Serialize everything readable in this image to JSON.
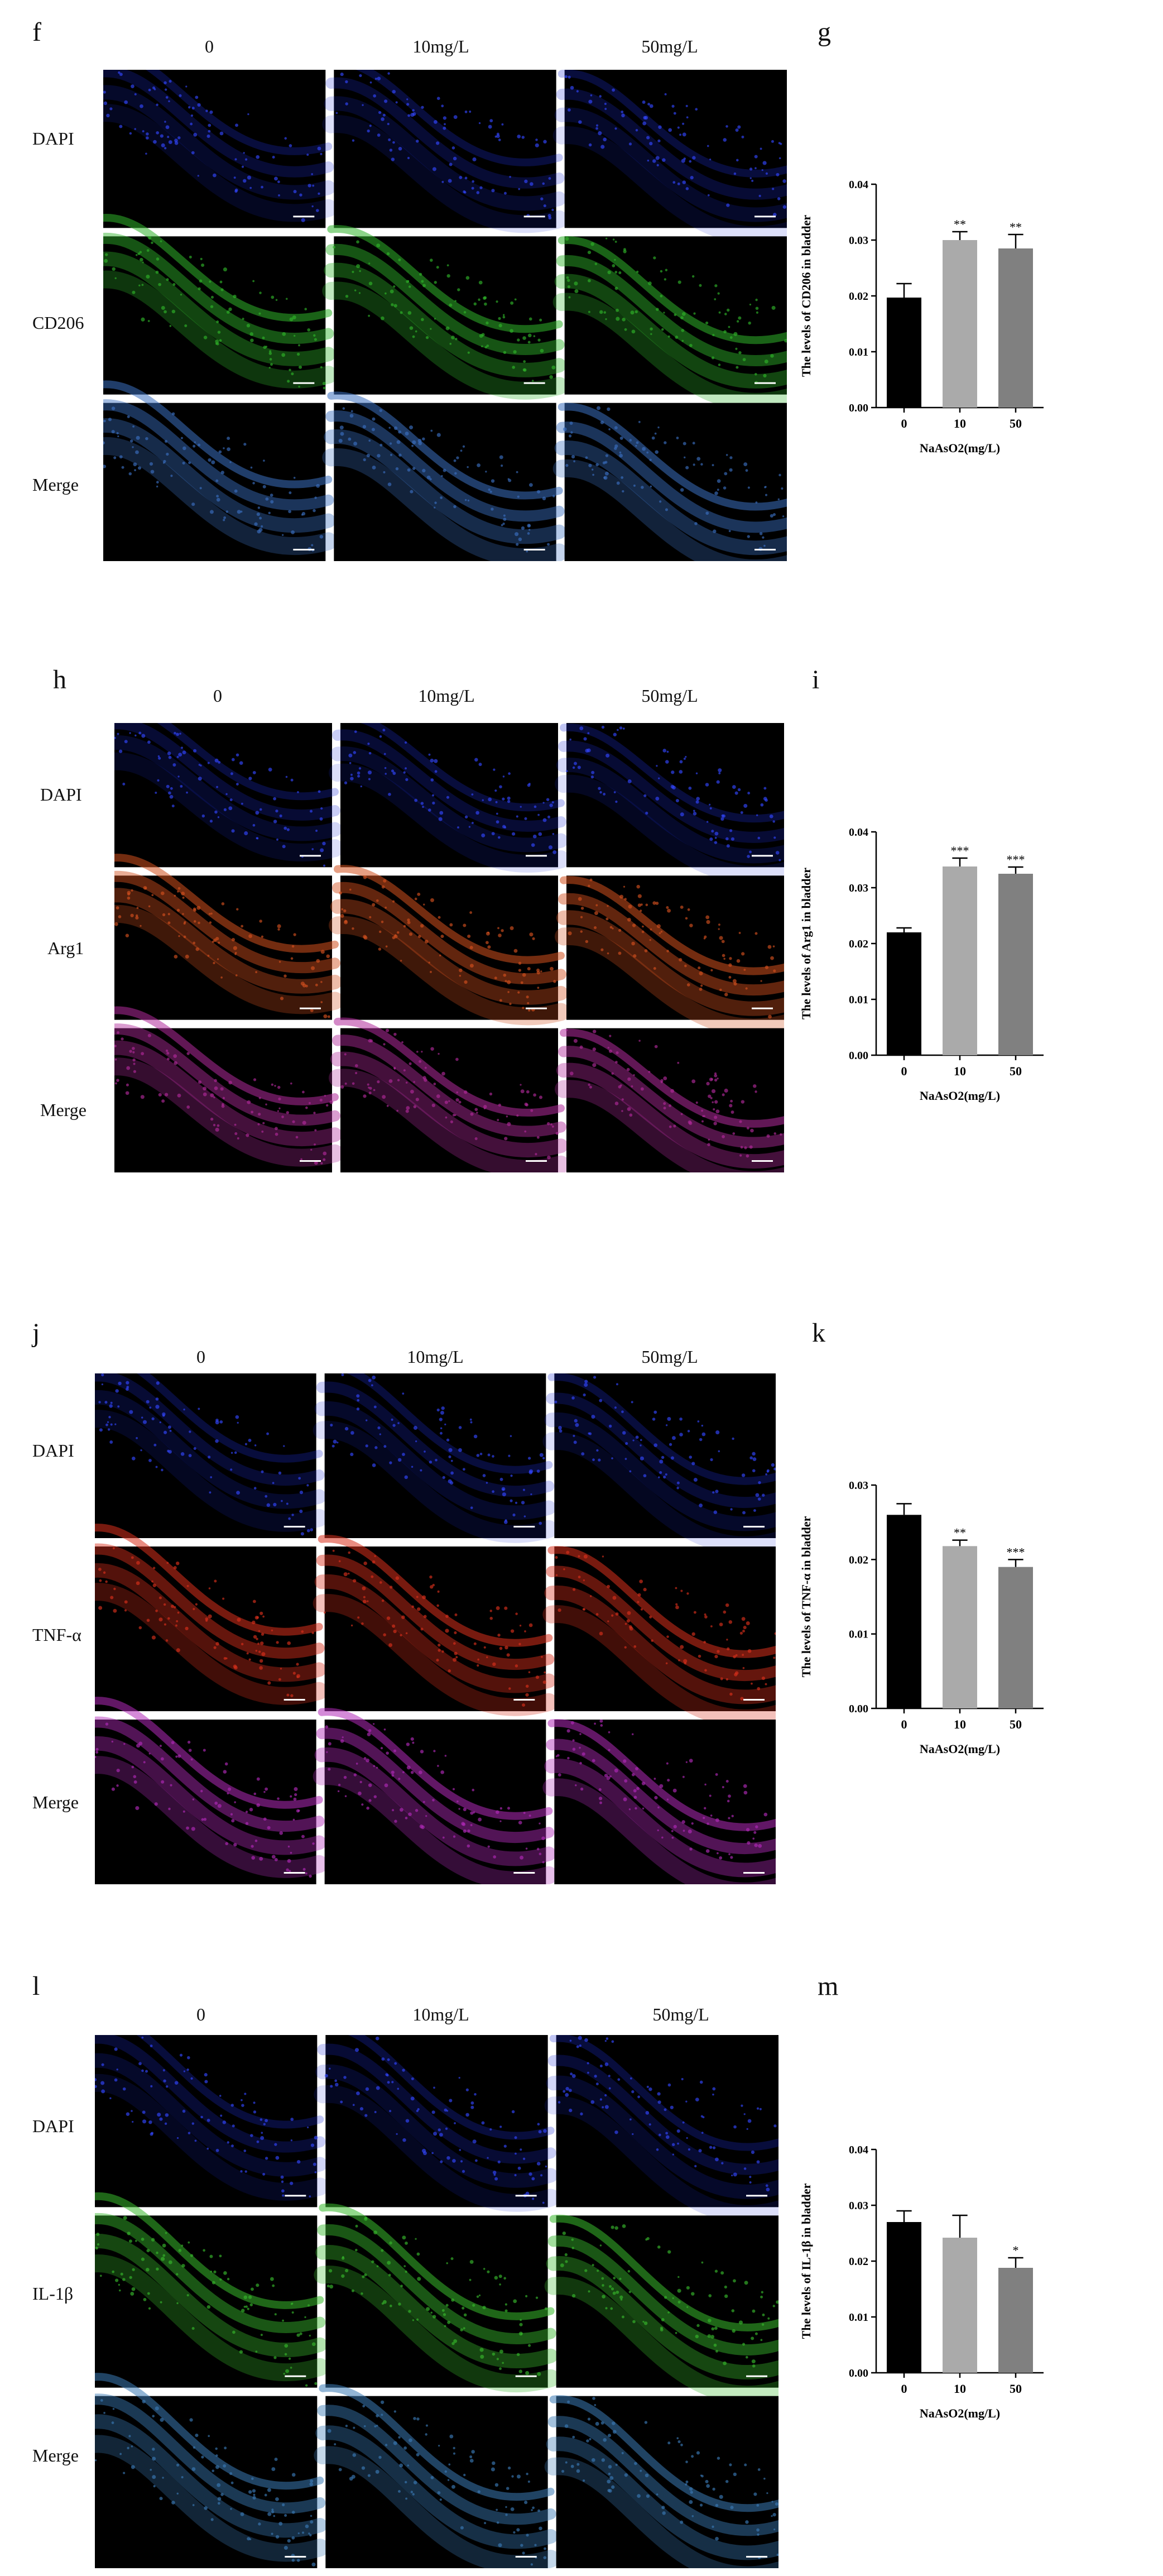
{
  "panels": [
    {
      "image_label": "f",
      "chart_label": "g",
      "columns": [
        "0",
        "10mg/L",
        "50mg/L"
      ],
      "rows": [
        "DAPI",
        "CD206",
        "Merge"
      ],
      "stain_colors": [
        "#1c2fd8",
        "#2fb32a",
        "#3a6fc0"
      ]
    },
    {
      "image_label": "h",
      "chart_label": "i",
      "columns": [
        "0",
        "10mg/L",
        "50mg/L"
      ],
      "rows": [
        "DAPI",
        "Arg1",
        "Merge"
      ],
      "stain_colors": [
        "#1c2fd8",
        "#d2501e",
        "#b02a9a"
      ]
    },
    {
      "image_label": "j",
      "chart_label": "k",
      "columns": [
        "0",
        "10mg/L",
        "50mg/L"
      ],
      "rows": [
        "DAPI",
        "TNF-α",
        "Merge"
      ],
      "stain_colors": [
        "#1c2fd8",
        "#d8301c",
        "#b02ab8"
      ]
    },
    {
      "image_label": "l",
      "chart_label": "m",
      "columns": [
        "0",
        "10mg/L",
        "50mg/L"
      ],
      "rows": [
        "DAPI",
        "IL-1β",
        "Merge"
      ],
      "stain_colors": [
        "#1c2fd8",
        "#38b92c",
        "#3a7ab5"
      ]
    }
  ],
  "chart_data": [
    {
      "type": "bar",
      "ylabel": "The levels of CD206 in bladder",
      "xlabel": "NaAsO2(mg/L)",
      "categories": [
        "0",
        "10",
        "50"
      ],
      "values": [
        0.0197,
        0.03,
        0.0285
      ],
      "errors": [
        0.0025,
        0.0015,
        0.0025
      ],
      "significance": [
        "",
        "**",
        "**"
      ],
      "bar_colors": [
        "#000000",
        "#aaaaaa",
        "#808080"
      ],
      "ylim": [
        0,
        0.04
      ],
      "yticks": [
        "0.00",
        "0.01",
        "0.02",
        "0.03",
        "0.04"
      ]
    },
    {
      "type": "bar",
      "ylabel": "The levels of Arg1 in bladder",
      "xlabel": "NaAsO2(mg/L)",
      "categories": [
        "0",
        "10",
        "50"
      ],
      "values": [
        0.022,
        0.0338,
        0.0325
      ],
      "errors": [
        0.0008,
        0.0015,
        0.0012
      ],
      "significance": [
        "",
        "***",
        "***"
      ],
      "bar_colors": [
        "#000000",
        "#aaaaaa",
        "#808080"
      ],
      "ylim": [
        0,
        0.04
      ],
      "yticks": [
        "0.00",
        "0.01",
        "0.02",
        "0.03",
        "0.04"
      ]
    },
    {
      "type": "bar",
      "ylabel": "The levels of TNF-α in bladder",
      "xlabel": "NaAsO2(mg/L)",
      "categories": [
        "0",
        "10",
        "50"
      ],
      "values": [
        0.026,
        0.0218,
        0.019
      ],
      "errors": [
        0.0015,
        0.0008,
        0.001
      ],
      "significance": [
        "",
        "**",
        "***"
      ],
      "bar_colors": [
        "#000000",
        "#aaaaaa",
        "#808080"
      ],
      "ylim": [
        0,
        0.03
      ],
      "yticks": [
        "0.00",
        "0.01",
        "0.02",
        "0.03"
      ]
    },
    {
      "type": "bar",
      "ylabel": "The levels of IL-1β in bladder",
      "xlabel": "NaAsO2(mg/L)",
      "categories": [
        "0",
        "10",
        "50"
      ],
      "values": [
        0.027,
        0.0242,
        0.0188
      ],
      "errors": [
        0.002,
        0.004,
        0.0018
      ],
      "significance": [
        "",
        "",
        "*"
      ],
      "bar_colors": [
        "#000000",
        "#aaaaaa",
        "#808080"
      ],
      "ylim": [
        0,
        0.04
      ],
      "yticks": [
        "0.00",
        "0.01",
        "0.02",
        "0.03",
        "0.04"
      ]
    }
  ]
}
